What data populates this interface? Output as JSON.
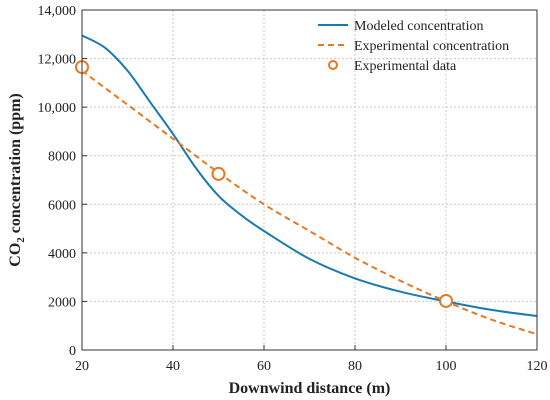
{
  "chart_data": {
    "type": "line",
    "xlabel": "Downwind distance (m)",
    "ylabel_parts": [
      "CO",
      "2",
      " concentration (ppm)"
    ],
    "xlim": [
      20,
      120
    ],
    "ylim": [
      0,
      14000
    ],
    "x_ticks": [
      20,
      40,
      60,
      80,
      100,
      120
    ],
    "y_ticks": [
      0,
      2000,
      4000,
      6000,
      8000,
      10000,
      12000,
      14000
    ],
    "y_tick_labels": [
      "0",
      "2000",
      "4000",
      "6000",
      "8000",
      "10,000",
      "12,000",
      "14,000"
    ],
    "grid": true,
    "legend_position": "top-right",
    "series": [
      {
        "name": "Modeled concentration",
        "style": "solid",
        "color": "#1a7ab0",
        "x": [
          20,
          25,
          30,
          35,
          40,
          45,
          50,
          55,
          60,
          70,
          80,
          90,
          100,
          110,
          120
        ],
        "y": [
          12950,
          12450,
          11500,
          10200,
          8900,
          7500,
          6350,
          5550,
          4900,
          3750,
          2950,
          2400,
          2000,
          1650,
          1400
        ]
      },
      {
        "name": "Experimental concentration",
        "style": "dashed",
        "color": "#e87722",
        "x": [
          20,
          30,
          40,
          50,
          60,
          70,
          80,
          90,
          100,
          110,
          120
        ],
        "y": [
          11500,
          10100,
          8700,
          7300,
          6000,
          4900,
          3800,
          2850,
          2000,
          1250,
          650
        ]
      },
      {
        "name": "Experimental data",
        "style": "markers",
        "color": "#e87722",
        "x": [
          20,
          50,
          100
        ],
        "y": [
          11650,
          7250,
          2020
        ]
      }
    ]
  }
}
